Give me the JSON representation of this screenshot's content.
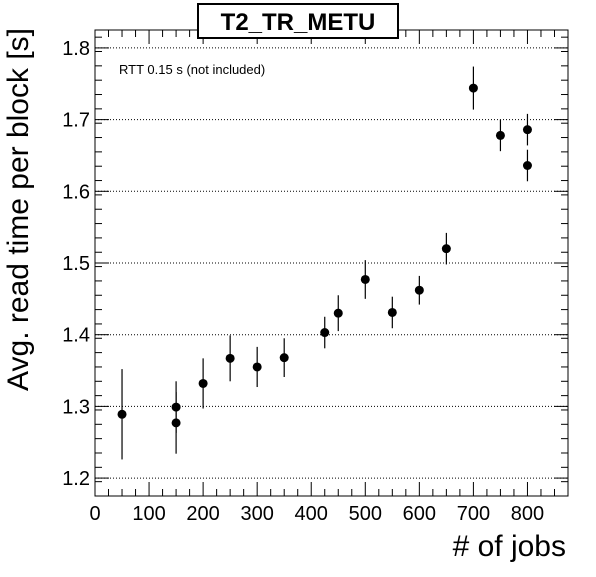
{
  "chart_data": {
    "type": "scatter",
    "title": "T2_TR_METU",
    "annotation": "RTT 0.15 s (not included)",
    "xlabel": "# of jobs",
    "ylabel": "Avg. read time per block [s]",
    "xlim": [
      0,
      875
    ],
    "ylim": [
      1.175,
      1.825
    ],
    "xticks": [
      0,
      100,
      200,
      300,
      400,
      500,
      600,
      700,
      800
    ],
    "yticks": [
      1.2,
      1.3,
      1.4,
      1.5,
      1.6,
      1.7,
      1.8
    ],
    "grid": "horizontal-dotted",
    "marker_color": "#000000",
    "points": [
      {
        "x": 50,
        "y": 1.289,
        "err": 0.063
      },
      {
        "x": 150,
        "y": 1.299,
        "err": 0.036
      },
      {
        "x": 150,
        "y": 1.277,
        "err": 0.043
      },
      {
        "x": 200,
        "y": 1.332,
        "err": 0.035
      },
      {
        "x": 250,
        "y": 1.367,
        "err": 0.032
      },
      {
        "x": 300,
        "y": 1.355,
        "err": 0.028
      },
      {
        "x": 350,
        "y": 1.368,
        "err": 0.027
      },
      {
        "x": 425,
        "y": 1.403,
        "err": 0.022
      },
      {
        "x": 450,
        "y": 1.43,
        "err": 0.025
      },
      {
        "x": 500,
        "y": 1.477,
        "err": 0.027
      },
      {
        "x": 550,
        "y": 1.431,
        "err": 0.022
      },
      {
        "x": 600,
        "y": 1.462,
        "err": 0.02
      },
      {
        "x": 650,
        "y": 1.52,
        "err": 0.022
      },
      {
        "x": 700,
        "y": 1.744,
        "err": 0.03
      },
      {
        "x": 750,
        "y": 1.678,
        "err": 0.022
      },
      {
        "x": 800,
        "y": 1.686,
        "err": 0.022
      },
      {
        "x": 800,
        "y": 1.636,
        "err": 0.022
      }
    ]
  }
}
